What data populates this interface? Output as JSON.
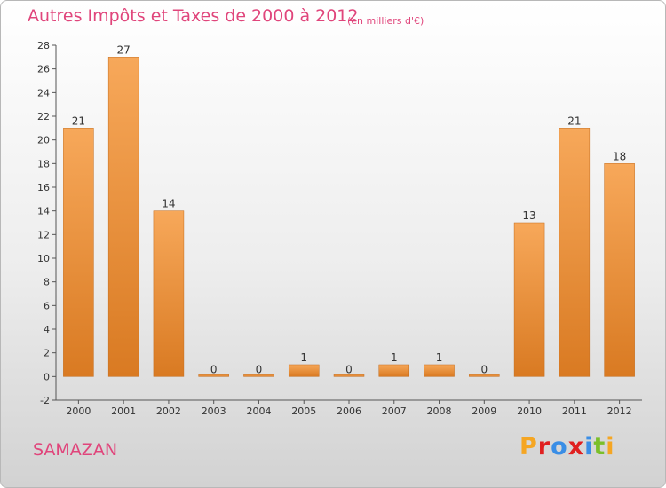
{
  "page": {
    "title": "Autres Impôts et Taxes de 2000 à 2012",
    "subtitle": "(en milliers d'€)",
    "place": "SAMAZAN",
    "logo_text": "Proxiti",
    "logo_colors": [
      "#f5a623",
      "#e02020",
      "#3a8ee6",
      "#e02020",
      "#3a8ee6",
      "#7bbf2a",
      "#f5a623"
    ]
  },
  "colors": {
    "title": "#e0457b",
    "bar_light": "#f7a85a",
    "bar_dark": "#d97a22",
    "axis": "#555555"
  },
  "chart_data": {
    "type": "bar",
    "categories": [
      "2000",
      "2001",
      "2002",
      "2003",
      "2004",
      "2005",
      "2006",
      "2007",
      "2008",
      "2009",
      "2010",
      "2011",
      "2012"
    ],
    "values": [
      21,
      27,
      14,
      0,
      0,
      1,
      0,
      1,
      1,
      0,
      13,
      21,
      18
    ],
    "title": "Autres Impôts et Taxes de 2000 à 2012",
    "subtitle": "(en milliers d'€)",
    "xlabel": "",
    "ylabel": "",
    "ylim": [
      -2,
      28
    ],
    "yticks": [
      -2,
      0,
      2,
      4,
      6,
      8,
      10,
      12,
      14,
      16,
      18,
      20,
      22,
      24,
      26,
      28
    ],
    "grid": false,
    "legend": "none"
  }
}
